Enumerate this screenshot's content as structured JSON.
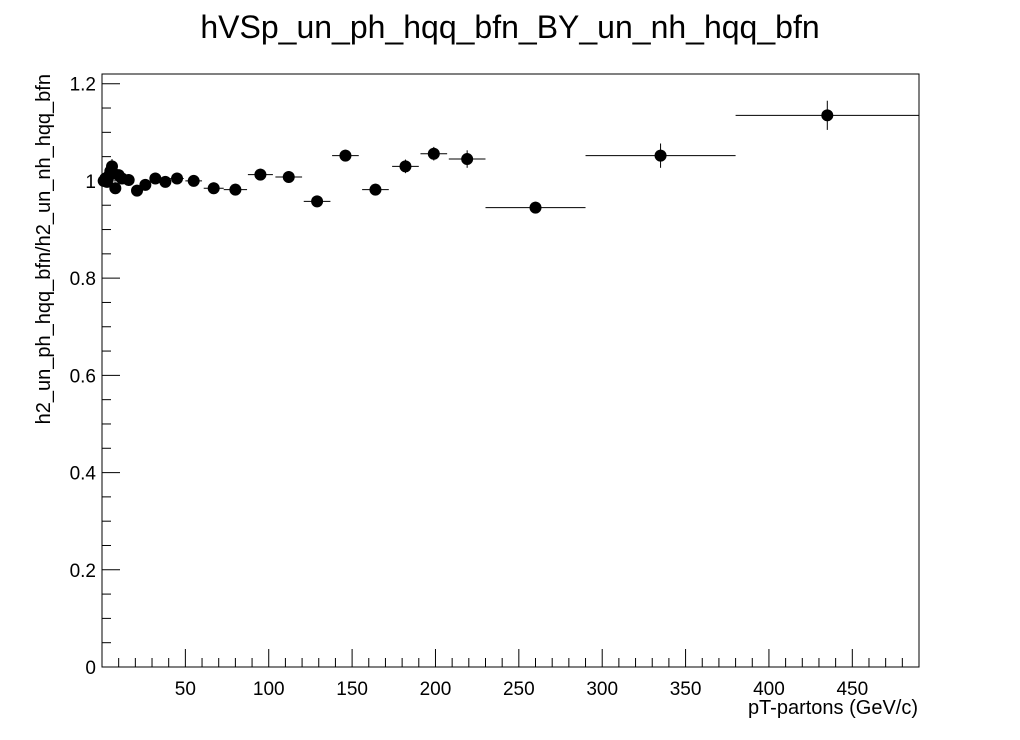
{
  "chart_data": {
    "type": "scatter",
    "title": "hVSp_un_ph_hqq_bfn_BY_un_nh_hqq_bfn",
    "xlabel": "pT-partons (GeV/c)",
    "ylabel": "h2_un_ph_hqq_bfn/h2_un_nh_hqq_bfn",
    "xlim": [
      0,
      490
    ],
    "ylim": [
      0,
      1.22
    ],
    "xticks": [
      50,
      100,
      150,
      200,
      250,
      300,
      350,
      400,
      450
    ],
    "yticks": [
      0,
      0.2,
      0.4,
      0.6,
      0.8,
      1,
      1.2
    ],
    "ytick_labels": [
      "0",
      "0.2",
      "0.4",
      "0.6",
      "0.8",
      "1",
      "1.2"
    ],
    "grid": false,
    "legend": "none",
    "marker_color": "#000000",
    "series": [
      {
        "points": [
          {
            "x": 1,
            "xerr": 1,
            "y": 1.0,
            "yerr": 0.012
          },
          {
            "x": 2,
            "xerr": 0.5,
            "y": 1.005,
            "yerr": 0.01
          },
          {
            "x": 3,
            "xerr": 0.5,
            "y": 0.998,
            "yerr": 0.01
          },
          {
            "x": 4,
            "xerr": 0.5,
            "y": 1.01,
            "yerr": 0.012
          },
          {
            "x": 5,
            "xerr": 0.5,
            "y": 1.02,
            "yerr": 0.012
          },
          {
            "x": 6,
            "xerr": 0.5,
            "y": 1.03,
            "yerr": 0.015
          },
          {
            "x": 7,
            "xerr": 0.5,
            "y": 1.015,
            "yerr": 0.012
          },
          {
            "x": 8,
            "xerr": 0.5,
            "y": 0.985,
            "yerr": 0.012
          },
          {
            "x": 10,
            "xerr": 1,
            "y": 1.012,
            "yerr": 0.01
          },
          {
            "x": 12,
            "xerr": 1,
            "y": 1.005,
            "yerr": 0.01
          },
          {
            "x": 16,
            "xerr": 2,
            "y": 1.002,
            "yerr": 0.01
          },
          {
            "x": 21,
            "xerr": 3,
            "y": 0.98,
            "yerr": 0.01
          },
          {
            "x": 26,
            "xerr": 3,
            "y": 0.992,
            "yerr": 0.01
          },
          {
            "x": 32,
            "xerr": 3,
            "y": 1.005,
            "yerr": 0.01
          },
          {
            "x": 38,
            "xerr": 3,
            "y": 0.998,
            "yerr": 0.01
          },
          {
            "x": 45,
            "xerr": 4,
            "y": 1.005,
            "yerr": 0.01
          },
          {
            "x": 55,
            "xerr": 5,
            "y": 1.0,
            "yerr": 0.01
          },
          {
            "x": 67,
            "xerr": 6,
            "y": 0.985,
            "yerr": 0.012
          },
          {
            "x": 80,
            "xerr": 7,
            "y": 0.982,
            "yerr": 0.012
          },
          {
            "x": 95,
            "xerr": 7.5,
            "y": 1.013,
            "yerr": 0.012
          },
          {
            "x": 112,
            "xerr": 8,
            "y": 1.008,
            "yerr": 0.012
          },
          {
            "x": 129,
            "xerr": 8,
            "y": 0.958,
            "yerr": 0.012
          },
          {
            "x": 146,
            "xerr": 8,
            "y": 1.052,
            "yerr": 0.012
          },
          {
            "x": 164,
            "xerr": 8,
            "y": 0.982,
            "yerr": 0.012
          },
          {
            "x": 182,
            "xerr": 8,
            "y": 1.03,
            "yerr": 0.014
          },
          {
            "x": 199,
            "xerr": 8,
            "y": 1.056,
            "yerr": 0.014
          },
          {
            "x": 219,
            "xerr": 11,
            "y": 1.045,
            "yerr": 0.018
          },
          {
            "x": 260,
            "xerr": 30,
            "y": 0.945,
            "yerr": 0.012
          },
          {
            "x": 335,
            "xerr": 45,
            "y": 1.052,
            "yerr": 0.025
          },
          {
            "x": 435,
            "xerr": 55,
            "y": 1.135,
            "yerr": 0.03
          }
        ]
      }
    ]
  }
}
